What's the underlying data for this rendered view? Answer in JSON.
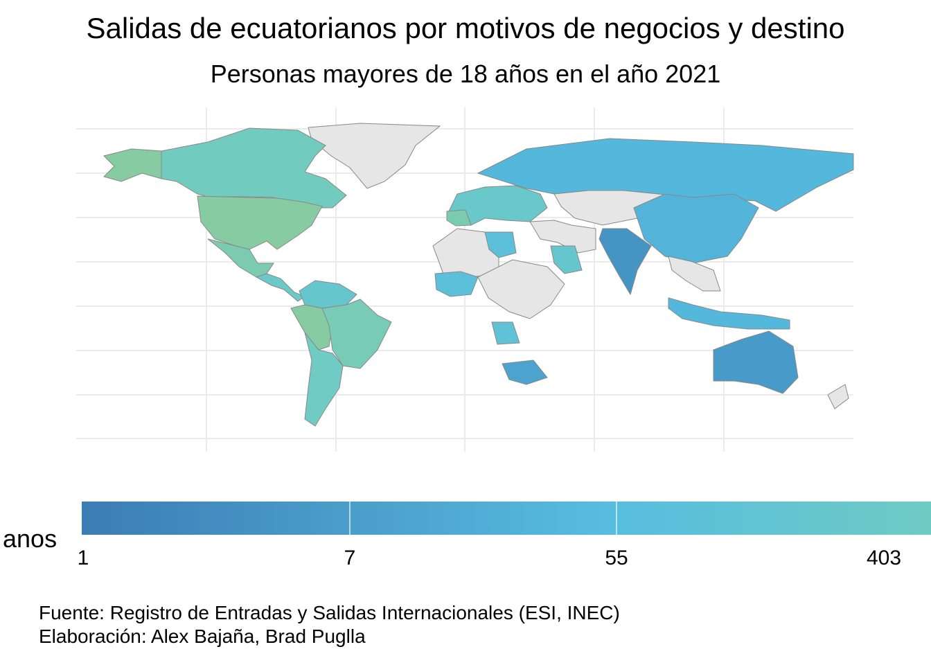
{
  "title": "Salidas de ecuatorianos por motivos de negocios y destino",
  "subtitle": "Personas mayores de 18 años en el año 2021",
  "legend": {
    "title": "anos",
    "scale": "log",
    "ticks": [
      {
        "label": "1",
        "value": 1
      },
      {
        "label": "7",
        "value": 7
      },
      {
        "label": "55",
        "value": 55
      },
      {
        "label": "403",
        "value": 403
      }
    ],
    "colors": {
      "low": "#3b7db4",
      "mid": "#57bde0",
      "high": "#6ecbc4",
      "max": "#86cba2",
      "no_data": "#e6e6e6",
      "border": "#888888"
    }
  },
  "caption": {
    "line1": "Fuente: Registro de Entradas y Salidas Internacionales (ESI, INEC)",
    "line2": "Elaboración: Alex Bajaña, Brad Puglla"
  },
  "chart_data": {
    "type": "choropleth",
    "variable": "anos",
    "value_scale": "log",
    "regions": [
      {
        "id": "greenland",
        "level": null
      },
      {
        "id": "canada",
        "level": 0.72
      },
      {
        "id": "alaska",
        "level": 1.0
      },
      {
        "id": "usa",
        "level": 1.0
      },
      {
        "id": "mexico",
        "level": 0.85
      },
      {
        "id": "central-america",
        "level": 0.62
      },
      {
        "id": "colombia-venezuela",
        "level": 0.55
      },
      {
        "id": "ecuador-peru",
        "level": 1.0
      },
      {
        "id": "brazil",
        "level": 0.8
      },
      {
        "id": "southern-cone",
        "level": 0.68
      },
      {
        "id": "western-europe",
        "level": 0.6
      },
      {
        "id": "spain",
        "level": 0.88
      },
      {
        "id": "russia",
        "level": 0.3
      },
      {
        "id": "north-africa",
        "level": null
      },
      {
        "id": "libya",
        "level": 0.4
      },
      {
        "id": "west-africa",
        "level": 0.4
      },
      {
        "id": "central-africa",
        "level": null
      },
      {
        "id": "angola",
        "level": 0.45
      },
      {
        "id": "south-africa",
        "level": 0.2
      },
      {
        "id": "middle-east",
        "level": null
      },
      {
        "id": "saudi-arabia",
        "level": 0.55
      },
      {
        "id": "central-asia",
        "level": null
      },
      {
        "id": "india",
        "level": 0.12
      },
      {
        "id": "china",
        "level": 0.28
      },
      {
        "id": "southeast-asia",
        "level": null
      },
      {
        "id": "indonesia",
        "level": 0.3
      },
      {
        "id": "australia",
        "level": 0.15
      },
      {
        "id": "new-zealand",
        "level": null
      }
    ]
  }
}
